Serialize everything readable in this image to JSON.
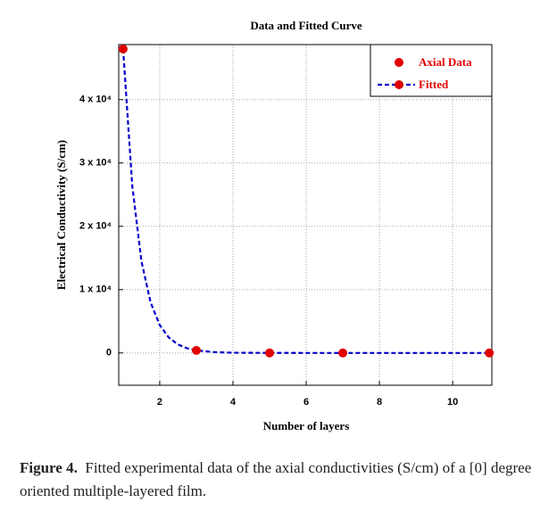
{
  "chart_data": {
    "type": "scatter",
    "title": "Data and Fitted Curve",
    "x_label": "Number of layers",
    "y_label": "Electrical Conductivity  (S/cm)",
    "xlim": [
      0.88,
      11.07
    ],
    "xticks": [
      2,
      4,
      6,
      8,
      10
    ],
    "ylim": [
      -5100,
      48700
    ],
    "yticks": [
      0,
      {
        "value": 10000,
        "label": "1 x 10⁴"
      },
      {
        "value": 20000,
        "label": "2 x 10⁴"
      },
      {
        "value": 30000,
        "label": "3 x 10⁴"
      },
      {
        "value": 40000,
        "label": "4 x 10⁴"
      }
    ],
    "grid": true,
    "legend": "upper right",
    "series": [
      {
        "name": "Axial Data",
        "color": "#e00000",
        "mode": "markers",
        "x": [
          1,
          3,
          5,
          7,
          11
        ],
        "values": [
          48000,
          400,
          0,
          0,
          0
        ]
      },
      {
        "name": "Fitted",
        "color": "#0000cc",
        "mode": "dashed-line",
        "x": [
          1,
          1.25,
          1.5,
          1.75,
          2,
          2.25,
          2.5,
          2.75,
          3,
          3.5,
          4,
          5,
          6,
          7,
          8,
          9,
          10,
          11
        ],
        "values": [
          48000,
          26400,
          14500,
          7990,
          4400,
          2420,
          1330,
          731,
          402,
          122,
          37,
          3,
          0,
          0,
          0,
          0,
          0,
          0
        ]
      }
    ]
  },
  "figure_caption": {
    "label": "Figure 4.",
    "text": "Fitted experimental data of the axial conductivities (S/cm) of a [0] degree oriented multiple-layered film."
  }
}
